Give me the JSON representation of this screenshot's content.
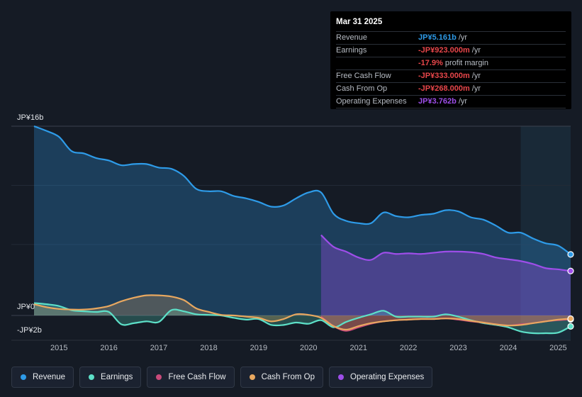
{
  "tooltip": {
    "date": "Mar 31 2025",
    "rows": [
      {
        "label": "Revenue",
        "value": "JP¥5.161b",
        "suffix": "/yr",
        "color": "#2e9be8"
      },
      {
        "label": "Earnings",
        "value": "-JP¥923.000m",
        "suffix": "/yr",
        "color": "#e8464a"
      },
      {
        "label": "",
        "value": "-17.9%",
        "suffix": "profit margin",
        "color": "#e8464a"
      },
      {
        "label": "Free Cash Flow",
        "value": "-JP¥333.000m",
        "suffix": "/yr",
        "color": "#e8464a"
      },
      {
        "label": "Cash From Op",
        "value": "-JP¥268.000m",
        "suffix": "/yr",
        "color": "#e8464a"
      },
      {
        "label": "Operating Expenses",
        "value": "JP¥3.762b",
        "suffix": "/yr",
        "color": "#9e4ee9"
      }
    ]
  },
  "legend": [
    {
      "label": "Revenue",
      "color": "#2e9be8"
    },
    {
      "label": "Earnings",
      "color": "#5de0c8"
    },
    {
      "label": "Free Cash Flow",
      "color": "#c94a7a"
    },
    {
      "label": "Cash From Op",
      "color": "#e8a860"
    },
    {
      "label": "Operating Expenses",
      "color": "#9e4ee9"
    }
  ],
  "chart_data": {
    "type": "area",
    "title": "",
    "xlabel": "",
    "ylabel": "",
    "unit": "JP¥ billions",
    "y_top_label": "JP¥16b",
    "y_zero_label": "JP¥0",
    "y_bottom_label": "-JP¥2b",
    "ylim": [
      -2,
      16
    ],
    "xlim": [
      2014.5,
      2025.25
    ],
    "x_ticks": [
      "2015",
      "2016",
      "2017",
      "2018",
      "2019",
      "2020",
      "2021",
      "2022",
      "2023",
      "2024",
      "2025"
    ],
    "x_tick_values": [
      2015,
      2016,
      2017,
      2018,
      2019,
      2020,
      2021,
      2022,
      2023,
      2024,
      2025
    ],
    "forecast_start": 2024.25,
    "series": [
      {
        "name": "Revenue",
        "color": "#2e9be8",
        "fill": true,
        "points": [
          [
            2014.5,
            16
          ],
          [
            2014.75,
            15.6
          ],
          [
            2015.0,
            15.1
          ],
          [
            2015.25,
            13.9
          ],
          [
            2015.5,
            13.7
          ],
          [
            2015.75,
            13.3
          ],
          [
            2016.0,
            13.1
          ],
          [
            2016.25,
            12.7
          ],
          [
            2016.5,
            12.8
          ],
          [
            2016.75,
            12.8
          ],
          [
            2017.0,
            12.5
          ],
          [
            2017.25,
            12.4
          ],
          [
            2017.5,
            11.8
          ],
          [
            2017.75,
            10.7
          ],
          [
            2018.0,
            10.5
          ],
          [
            2018.25,
            10.5
          ],
          [
            2018.5,
            10.1
          ],
          [
            2018.75,
            9.9
          ],
          [
            2019.0,
            9.6
          ],
          [
            2019.25,
            9.2
          ],
          [
            2019.5,
            9.3
          ],
          [
            2019.75,
            9.9
          ],
          [
            2020.0,
            10.4
          ],
          [
            2020.25,
            10.4
          ],
          [
            2020.5,
            8.6
          ],
          [
            2020.75,
            8.0
          ],
          [
            2021.0,
            7.8
          ],
          [
            2021.25,
            7.8
          ],
          [
            2021.5,
            8.7
          ],
          [
            2021.75,
            8.4
          ],
          [
            2022.0,
            8.3
          ],
          [
            2022.25,
            8.5
          ],
          [
            2022.5,
            8.6
          ],
          [
            2022.75,
            8.9
          ],
          [
            2023.0,
            8.8
          ],
          [
            2023.25,
            8.3
          ],
          [
            2023.5,
            8.1
          ],
          [
            2023.75,
            7.6
          ],
          [
            2024.0,
            7.0
          ],
          [
            2024.25,
            7.0
          ],
          [
            2024.5,
            6.5
          ],
          [
            2024.75,
            6.1
          ],
          [
            2025.0,
            5.9
          ],
          [
            2025.25,
            5.16
          ]
        ]
      },
      {
        "name": "Operating Expenses",
        "color": "#9e4ee9",
        "fill": true,
        "points": [
          [
            2020.25,
            6.8
          ],
          [
            2020.5,
            5.8
          ],
          [
            2020.75,
            5.4
          ],
          [
            2021.0,
            4.9
          ],
          [
            2021.25,
            4.7
          ],
          [
            2021.5,
            5.3
          ],
          [
            2021.75,
            5.2
          ],
          [
            2022.0,
            5.25
          ],
          [
            2022.25,
            5.2
          ],
          [
            2022.5,
            5.3
          ],
          [
            2022.75,
            5.4
          ],
          [
            2023.0,
            5.4
          ],
          [
            2023.25,
            5.35
          ],
          [
            2023.5,
            5.2
          ],
          [
            2023.75,
            4.9
          ],
          [
            2024.0,
            4.75
          ],
          [
            2024.25,
            4.6
          ],
          [
            2024.5,
            4.35
          ],
          [
            2024.75,
            4.0
          ],
          [
            2025.0,
            3.9
          ],
          [
            2025.25,
            3.76
          ]
        ]
      },
      {
        "name": "Earnings",
        "color": "#5de0c8",
        "fill": true,
        "points": [
          [
            2014.5,
            1.05
          ],
          [
            2014.75,
            0.95
          ],
          [
            2015.0,
            0.8
          ],
          [
            2015.25,
            0.45
          ],
          [
            2015.5,
            0.35
          ],
          [
            2015.75,
            0.3
          ],
          [
            2016.0,
            0.3
          ],
          [
            2016.25,
            -0.75
          ],
          [
            2016.5,
            -0.65
          ],
          [
            2016.75,
            -0.5
          ],
          [
            2017.0,
            -0.55
          ],
          [
            2017.25,
            0.45
          ],
          [
            2017.5,
            0.35
          ],
          [
            2017.75,
            0.1
          ],
          [
            2018.0,
            0.05
          ],
          [
            2018.25,
            0.0
          ],
          [
            2018.5,
            -0.2
          ],
          [
            2018.75,
            -0.35
          ],
          [
            2019.0,
            -0.3
          ],
          [
            2019.25,
            -0.8
          ],
          [
            2019.5,
            -0.8
          ],
          [
            2019.75,
            -0.6
          ],
          [
            2020.0,
            -0.7
          ],
          [
            2020.25,
            -0.4
          ],
          [
            2020.5,
            -1.0
          ],
          [
            2020.75,
            -0.55
          ],
          [
            2021.0,
            -0.2
          ],
          [
            2021.25,
            0.1
          ],
          [
            2021.5,
            0.4
          ],
          [
            2021.75,
            -0.1
          ],
          [
            2022.0,
            -0.1
          ],
          [
            2022.25,
            -0.1
          ],
          [
            2022.5,
            -0.1
          ],
          [
            2022.75,
            0.1
          ],
          [
            2023.0,
            -0.1
          ],
          [
            2023.25,
            -0.4
          ],
          [
            2023.5,
            -0.65
          ],
          [
            2023.75,
            -0.8
          ],
          [
            2024.0,
            -1.0
          ],
          [
            2024.25,
            -1.35
          ],
          [
            2024.5,
            -1.5
          ],
          [
            2024.75,
            -1.5
          ],
          [
            2025.0,
            -1.45
          ],
          [
            2025.25,
            -0.92
          ]
        ]
      },
      {
        "name": "Free Cash Flow",
        "color": "#c94a7a",
        "fill": true,
        "points": [
          [
            2020.25,
            -0.1
          ],
          [
            2020.5,
            -0.9
          ],
          [
            2020.75,
            -1.3
          ],
          [
            2021.0,
            -1.0
          ],
          [
            2021.25,
            -0.7
          ],
          [
            2021.5,
            -0.5
          ],
          [
            2021.75,
            -0.4
          ],
          [
            2022.0,
            -0.35
          ],
          [
            2022.25,
            -0.3
          ],
          [
            2022.5,
            -0.3
          ],
          [
            2022.75,
            -0.25
          ],
          [
            2023.0,
            -0.35
          ],
          [
            2023.25,
            -0.5
          ],
          [
            2023.5,
            -0.6
          ],
          [
            2023.75,
            -0.75
          ],
          [
            2024.0,
            -0.85
          ],
          [
            2024.25,
            -0.75
          ],
          [
            2024.5,
            -0.65
          ],
          [
            2024.75,
            -0.5
          ],
          [
            2025.0,
            -0.4
          ],
          [
            2025.25,
            -0.33
          ]
        ]
      },
      {
        "name": "Cash From Op",
        "color": "#e8a860",
        "fill": true,
        "points": [
          [
            2014.5,
            0.95
          ],
          [
            2014.75,
            0.7
          ],
          [
            2015.0,
            0.55
          ],
          [
            2015.25,
            0.5
          ],
          [
            2015.5,
            0.5
          ],
          [
            2015.75,
            0.6
          ],
          [
            2016.0,
            0.8
          ],
          [
            2016.25,
            1.2
          ],
          [
            2016.5,
            1.5
          ],
          [
            2016.75,
            1.7
          ],
          [
            2017.0,
            1.7
          ],
          [
            2017.25,
            1.6
          ],
          [
            2017.5,
            1.3
          ],
          [
            2017.75,
            0.6
          ],
          [
            2018.0,
            0.3
          ],
          [
            2018.25,
            0.05
          ],
          [
            2018.5,
            0.0
          ],
          [
            2018.75,
            -0.1
          ],
          [
            2019.0,
            -0.2
          ],
          [
            2019.25,
            -0.5
          ],
          [
            2019.5,
            -0.3
          ],
          [
            2019.75,
            0.1
          ],
          [
            2020.0,
            0.05
          ],
          [
            2020.25,
            -0.2
          ],
          [
            2020.5,
            -0.9
          ],
          [
            2020.75,
            -1.2
          ],
          [
            2021.0,
            -0.9
          ],
          [
            2021.25,
            -0.65
          ],
          [
            2021.5,
            -0.5
          ],
          [
            2021.75,
            -0.4
          ],
          [
            2022.0,
            -0.35
          ],
          [
            2022.25,
            -0.3
          ],
          [
            2022.5,
            -0.3
          ],
          [
            2022.75,
            -0.25
          ],
          [
            2023.0,
            -0.3
          ],
          [
            2023.25,
            -0.45
          ],
          [
            2023.5,
            -0.6
          ],
          [
            2023.75,
            -0.75
          ],
          [
            2024.0,
            -0.85
          ],
          [
            2024.25,
            -0.8
          ],
          [
            2024.5,
            -0.65
          ],
          [
            2024.75,
            -0.5
          ],
          [
            2025.0,
            -0.35
          ],
          [
            2025.25,
            -0.27
          ]
        ]
      }
    ]
  }
}
